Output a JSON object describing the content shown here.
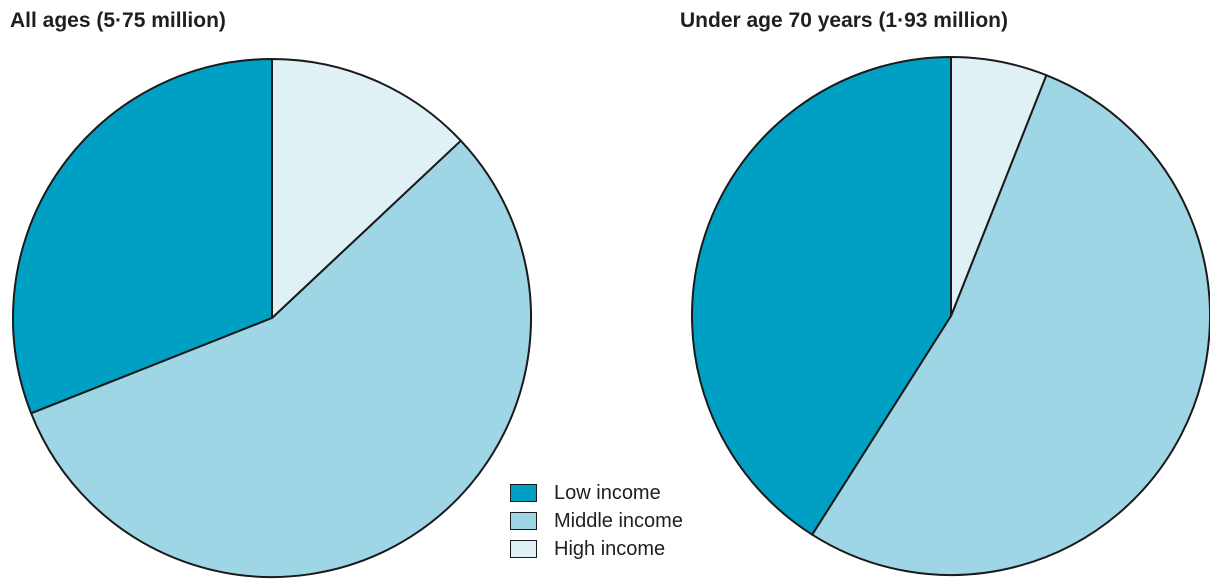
{
  "chart_data": [
    {
      "type": "pie",
      "title": "All ages (5·75 million)",
      "categories": [
        "Low income",
        "Middle income",
        "High income"
      ],
      "values": [
        31,
        56,
        13
      ],
      "unit": "%",
      "start": "12 o'clock",
      "direction": "counter-clockwise"
    },
    {
      "type": "pie",
      "title": "Under age 70 years (1·93 million)",
      "categories": [
        "Low income",
        "Middle income",
        "High income"
      ],
      "values": [
        41,
        53,
        6
      ],
      "unit": "%",
      "start": "12 o'clock",
      "direction": "counter-clockwise"
    }
  ],
  "legend": {
    "placement": "bottom-center",
    "items": [
      {
        "label": "Low income",
        "color": "#00a0c4"
      },
      {
        "label": "Middle income",
        "color": "#9fd6e6"
      },
      {
        "label": "High income",
        "color": "#e0f1f6"
      }
    ]
  },
  "colors": {
    "low": "#00a0c4",
    "middle": "#9fd6e6",
    "high": "#e0f1f6",
    "outline": "#1a1a1a"
  }
}
